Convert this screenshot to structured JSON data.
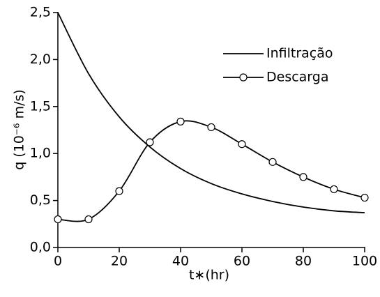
{
  "chart_data": {
    "type": "line",
    "x": [
      0,
      10,
      20,
      30,
      40,
      50,
      60,
      70,
      80,
      90,
      100
    ],
    "series": [
      {
        "name": "Infiltração",
        "color": "#000000",
        "marker": "none",
        "values": [
          2.5,
          1.85,
          1.39,
          1.07,
          0.84,
          0.68,
          0.57,
          0.49,
          0.43,
          0.39,
          0.37
        ]
      },
      {
        "name": "Descarga",
        "color": "#000000",
        "marker": "circle",
        "values": [
          0.3,
          0.3,
          0.6,
          1.12,
          1.34,
          1.28,
          1.1,
          0.91,
          0.75,
          0.62,
          0.53
        ]
      }
    ],
    "xlabel": "t∗(hr)",
    "ylabel": "q (10⁻⁶ m/s)",
    "xlim": [
      0,
      100
    ],
    "xticks": [
      0,
      20,
      40,
      60,
      80,
      100
    ],
    "ylim": [
      0,
      2.5
    ],
    "yticks": [
      {
        "value": 0,
        "label": "0,0"
      },
      {
        "value": 0.5,
        "label": "0,5"
      },
      {
        "value": 1,
        "label": "1,0"
      },
      {
        "value": 1.5,
        "label": "1,5"
      },
      {
        "value": 2,
        "label": "2,0"
      },
      {
        "value": 2.5,
        "label": "2,5"
      }
    ],
    "legend": "upper right",
    "grid": false
  }
}
